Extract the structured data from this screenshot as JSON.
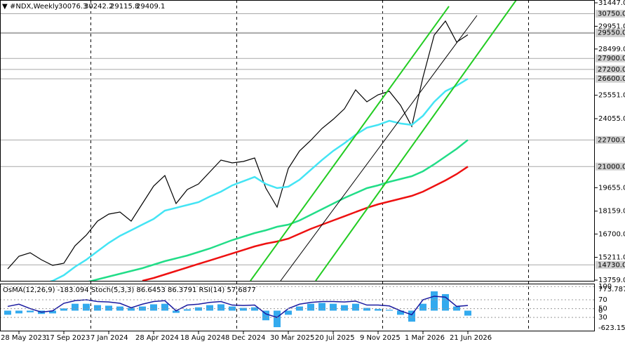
{
  "chart_data": [
    {
      "type": "line",
      "title": "#NDX,Weekly",
      "ohlc": [
        30076.3,
        30242.2,
        29115.8,
        29409.1
      ],
      "categories": [
        null,
        "28 May 2023",
        null,
        null,
        null,
        "17 Sep 2023",
        null,
        null,
        null,
        "7 Jan 2024",
        null,
        null,
        null,
        "28 Apr 2024",
        null,
        null,
        null,
        "18 Aug 2024",
        null,
        null,
        null,
        "8 Dec 2024",
        null,
        null,
        null,
        "30 Mar 2025",
        null,
        null,
        null,
        "20 Jul 2025",
        null,
        null,
        null,
        "9 Nov 2025",
        null,
        null,
        null,
        "1 Mar 2026",
        null,
        null,
        null,
        "21 Jun 2026"
      ],
      "series": [
        {
          "color": "#000000",
          "values": [
            14475,
            15281,
            15505,
            15057,
            14699,
            14834,
            15953,
            16625,
            17520,
            17968,
            18102,
            17520,
            18640,
            19759,
            20431,
            18640,
            19535,
            19894,
            20655,
            21416,
            21237,
            21327,
            21550,
            19625,
            18416,
            20879,
            21998,
            22670,
            23431,
            24013,
            24685,
            25894,
            25133,
            25581,
            25805,
            24909,
            23566,
            26700,
            29387,
            30283,
            28939,
            29409
          ]
        },
        {
          "color": "#44e4f4",
          "values": [
            13040,
            13180,
            13360,
            13490,
            13710,
            14070,
            14610,
            15060,
            15600,
            16130,
            16580,
            16940,
            17300,
            17660,
            18190,
            18370,
            18550,
            18730,
            19090,
            19400,
            19800,
            20070,
            20340,
            19890,
            19630,
            19720,
            20160,
            20790,
            21420,
            22000,
            22490,
            23030,
            23480,
            23660,
            23920,
            23750,
            23660,
            24240,
            25130,
            25810,
            26160,
            26600
          ]
        },
        {
          "color": "#22dd88",
          "values": [
            null,
            null,
            null,
            null,
            null,
            null,
            13490,
            13624,
            13803,
            13982,
            14162,
            14341,
            14520,
            14744,
            14968,
            15147,
            15326,
            15550,
            15774,
            16042,
            16311,
            16535,
            16759,
            16938,
            17162,
            17296,
            17565,
            17923,
            18282,
            18640,
            18998,
            19311,
            19625,
            19804,
            20028,
            20207,
            20386,
            20700,
            21148,
            21641,
            22133,
            22700
          ]
        },
        {
          "color": "#ee1111",
          "values": [
            null,
            null,
            null,
            null,
            null,
            null,
            null,
            null,
            null,
            null,
            null,
            null,
            13714,
            13893,
            14117,
            14341,
            14565,
            14789,
            15012,
            15236,
            15460,
            15684,
            15908,
            16087,
            16222,
            16401,
            16714,
            17028,
            17296,
            17565,
            17833,
            18102,
            18371,
            18595,
            18774,
            18953,
            19132,
            19401,
            19760,
            20118,
            20521,
            21000
          ]
        }
      ],
      "ylim": [
        13714,
        31626
      ],
      "yticks": [
        {
          "value": 31447,
          "label": "31447.0"
        },
        {
          "value": 29951,
          "label": "29951.0"
        },
        {
          "value": 28499,
          "label": "28499.0"
        },
        {
          "value": 25551,
          "label": "25551.0"
        },
        {
          "value": 24055,
          "label": "24055.0"
        },
        {
          "value": 19655,
          "label": "19655.0"
        },
        {
          "value": 18159,
          "label": "18159.0"
        },
        {
          "value": 16700,
          "label": "16700.0"
        },
        {
          "value": 15211,
          "label": "15211.0"
        },
        {
          "value": 13759,
          "label": "13759.0"
        }
      ],
      "levels": [
        {
          "value": 30750,
          "label": "30750.0"
        },
        {
          "value": 29500,
          "label": "29500.0"
        },
        {
          "value": 29550,
          "label": "29550.0"
        },
        {
          "value": 27900,
          "label": "27900.0"
        },
        {
          "value": 27200,
          "label": "27200.0"
        },
        {
          "value": 26600,
          "label": "26600.0"
        },
        {
          "value": 22700,
          "label": "22700.0"
        },
        {
          "value": 21000,
          "label": "21000.0"
        },
        {
          "value": 14730,
          "label": "14730.0"
        }
      ],
      "level_color": "#a8a8a8"
    },
    {
      "type": "oscillator",
      "title": "OsMA(12,26,9) -183.094 Stoch(5,3,3) 86.6453 86.3791 RSI(14) 57.6877",
      "series": [
        {
          "type": "bar",
          "color": "#33aaee",
          "values": [
            -150,
            -100,
            -60,
            -120,
            -100,
            80,
            250,
            250,
            200,
            180,
            150,
            100,
            150,
            230,
            250,
            -80,
            50,
            120,
            200,
            230,
            150,
            100,
            120,
            -350,
            -600,
            -150,
            150,
            250,
            280,
            250,
            200,
            250,
            100,
            60,
            30,
            -150,
            -400,
            250,
            700,
            600,
            150,
            -180
          ]
        },
        {
          "type": "line",
          "axis": "y2",
          "color": "#1a1aa0",
          "values": [
            55,
            60,
            50,
            42,
            45,
            62,
            68,
            70,
            66,
            65,
            62,
            52,
            60,
            66,
            68,
            45,
            58,
            60,
            64,
            66,
            58,
            57,
            58,
            38,
            30,
            50,
            60,
            64,
            66,
            66,
            65,
            67,
            58,
            58,
            56,
            45,
            36,
            70,
            78,
            76,
            55,
            57
          ]
        }
      ],
      "ylim": [
        -752,
        955
      ],
      "yticks": [
        773.787,
        0,
        -623.151
      ],
      "y2lim": [
        0,
        105
      ],
      "y2ticks": [
        100,
        70,
        50,
        30
      ]
    }
  ]
}
